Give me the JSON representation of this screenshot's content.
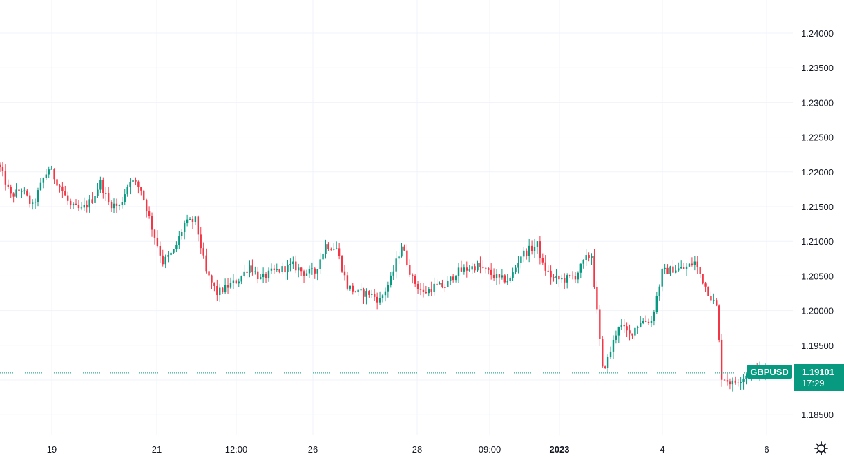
{
  "chart_data": {
    "type": "candlestick",
    "symbol": "GBPUSD",
    "last_price": "1.19101",
    "countdown": "17:29",
    "ylim": [
      1.183,
      1.2455
    ],
    "y_ticks": [
      "1.24000",
      "1.23500",
      "1.23000",
      "1.22500",
      "1.22000",
      "1.21500",
      "1.21000",
      "1.20500",
      "1.20000",
      "1.19500",
      "1.19000",
      "1.18500"
    ],
    "x_ticks": [
      {
        "label": "19",
        "bold": false
      },
      {
        "label": "21",
        "bold": false
      },
      {
        "label": "12:00",
        "bold": false
      },
      {
        "label": "26",
        "bold": false
      },
      {
        "label": "28",
        "bold": false
      },
      {
        "label": "09:00",
        "bold": false
      },
      {
        "label": "2023",
        "bold": true
      },
      {
        "label": "4",
        "bold": false
      },
      {
        "label": "6",
        "bold": false
      }
    ],
    "close_anchors": [
      [
        0,
        1.2205
      ],
      [
        4,
        1.2165
      ],
      [
        8,
        1.2175
      ],
      [
        12,
        1.215
      ],
      [
        16,
        1.219
      ],
      [
        18,
        1.2205
      ],
      [
        22,
        1.218
      ],
      [
        26,
        1.215
      ],
      [
        30,
        1.2145
      ],
      [
        34,
        1.216
      ],
      [
        37,
        1.2185
      ],
      [
        40,
        1.2155
      ],
      [
        44,
        1.215
      ],
      [
        48,
        1.219
      ],
      [
        52,
        1.2175
      ],
      [
        56,
        1.212
      ],
      [
        60,
        1.207
      ],
      [
        64,
        1.2085
      ],
      [
        68,
        1.2125
      ],
      [
        72,
        1.213
      ],
      [
        76,
        1.2055
      ],
      [
        80,
        1.2025
      ],
      [
        84,
        1.2035
      ],
      [
        88,
        1.2045
      ],
      [
        92,
        1.2065
      ],
      [
        96,
        1.2045
      ],
      [
        100,
        1.2055
      ],
      [
        104,
        1.206
      ],
      [
        108,
        1.2065
      ],
      [
        112,
        1.2055
      ],
      [
        116,
        1.2055
      ],
      [
        120,
        1.2095
      ],
      [
        124,
        1.209
      ],
      [
        128,
        1.2035
      ],
      [
        132,
        1.2025
      ],
      [
        136,
        1.2025
      ],
      [
        140,
        1.2015
      ],
      [
        144,
        1.2045
      ],
      [
        148,
        1.2095
      ],
      [
        152,
        1.2045
      ],
      [
        156,
        1.2025
      ],
      [
        160,
        1.2035
      ],
      [
        164,
        1.2035
      ],
      [
        168,
        1.2055
      ],
      [
        172,
        1.206
      ],
      [
        176,
        1.2065
      ],
      [
        180,
        1.2055
      ],
      [
        184,
        1.2045
      ],
      [
        188,
        1.2045
      ],
      [
        192,
        1.208
      ],
      [
        196,
        1.209
      ],
      [
        198,
        1.2095
      ],
      [
        200,
        1.2065
      ],
      [
        204,
        1.2045
      ],
      [
        208,
        1.2045
      ],
      [
        212,
        1.205
      ],
      [
        216,
        1.2075
      ],
      [
        218,
        1.208
      ],
      [
        222,
        1.1915
      ],
      [
        224,
        1.193
      ],
      [
        228,
        1.198
      ],
      [
        232,
        1.1965
      ],
      [
        236,
        1.1985
      ],
      [
        240,
        1.1985
      ],
      [
        244,
        1.2055
      ],
      [
        248,
        1.206
      ],
      [
        252,
        1.206
      ],
      [
        256,
        1.207
      ],
      [
        260,
        1.2035
      ],
      [
        264,
        1.2005
      ],
      [
        266,
        1.1905
      ],
      [
        270,
        1.1895
      ],
      [
        274,
        1.1905
      ],
      [
        278,
        1.1915
      ],
      [
        282,
        1.191
      ]
    ]
  }
}
